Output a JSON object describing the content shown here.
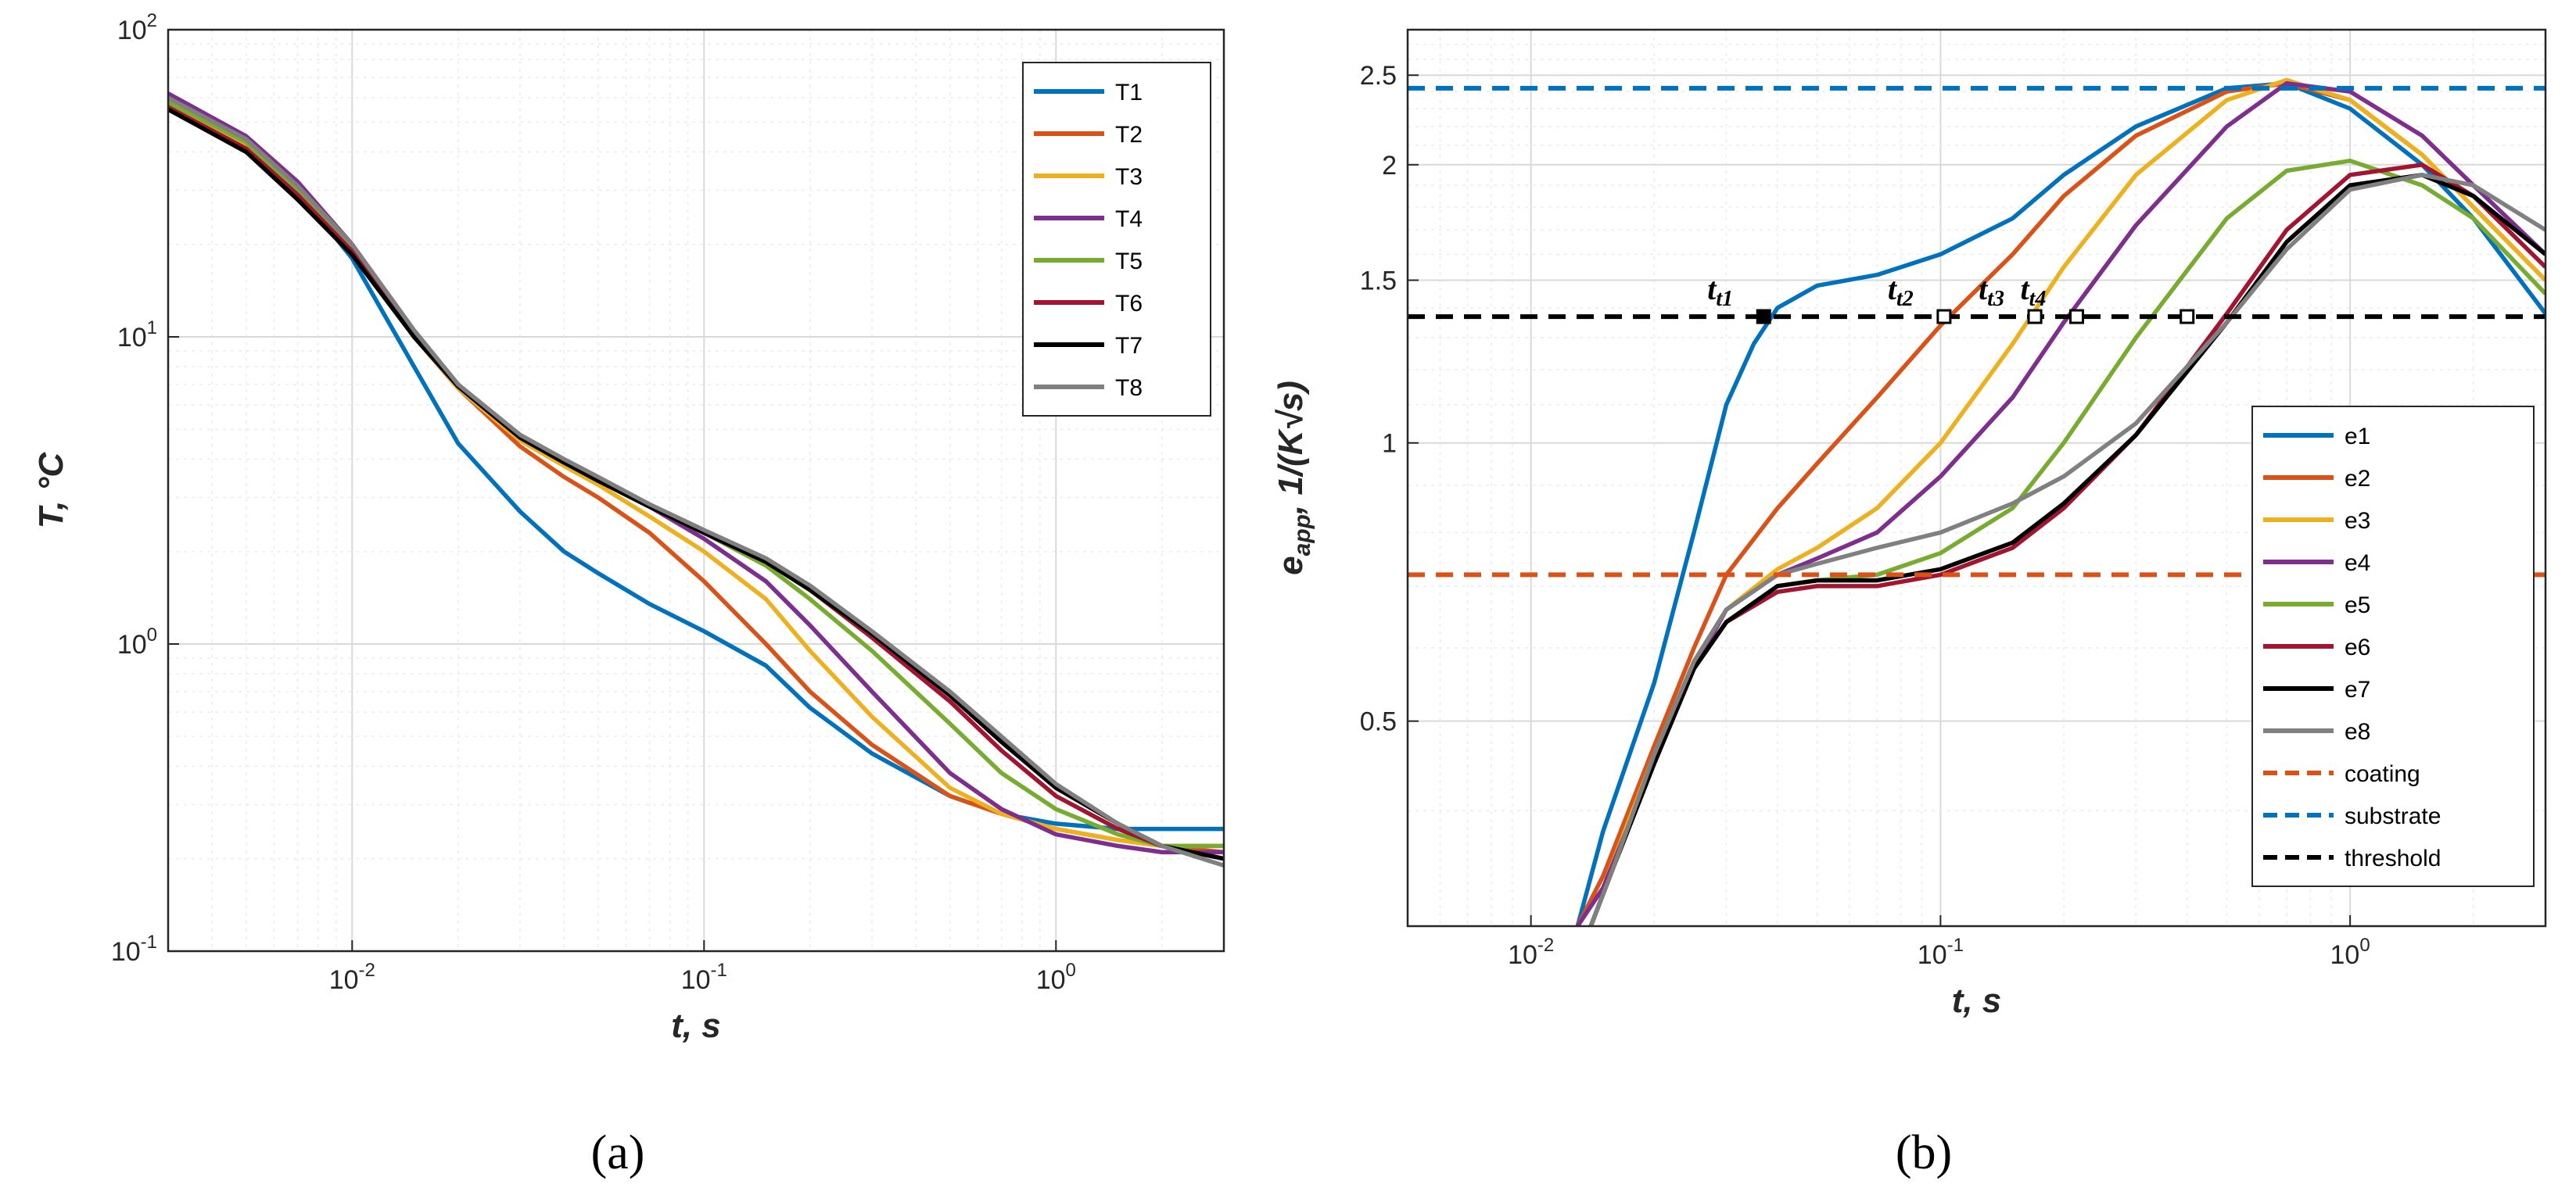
{
  "chart_data": [
    {
      "panel_label": "a",
      "type": "line",
      "xscale": "log",
      "yscale": "log",
      "xlim": [
        0.003,
        3
      ],
      "ylim": [
        0.1,
        100
      ],
      "xlabel": "t, s",
      "ylabel": "T, °C",
      "xticks": [
        {
          "value": 0.01,
          "base": "10",
          "exp": "-2"
        },
        {
          "value": 0.1,
          "base": "10",
          "exp": "-1"
        },
        {
          "value": 1,
          "base": "10",
          "exp": "0"
        }
      ],
      "yticks": [
        {
          "value": 0.1,
          "base": "10",
          "exp": "-1"
        },
        {
          "value": 1,
          "base": "10",
          "exp": "0"
        },
        {
          "value": 10,
          "base": "10",
          "exp": "1"
        },
        {
          "value": 100,
          "base": "10",
          "exp": "2"
        }
      ],
      "grid": true,
      "legend_position": "top-right",
      "series": [
        {
          "name": "T1",
          "color": "#0072BD",
          "x": [
            0.003,
            0.005,
            0.007,
            0.01,
            0.015,
            0.02,
            0.03,
            0.04,
            0.05,
            0.07,
            0.1,
            0.15,
            0.2,
            0.3,
            0.5,
            0.7,
            1,
            1.5,
            2,
            3
          ],
          "y": [
            58,
            42,
            30,
            18,
            8,
            4.5,
            2.7,
            2.0,
            1.7,
            1.35,
            1.1,
            0.85,
            0.62,
            0.44,
            0.32,
            0.28,
            0.26,
            0.25,
            0.25,
            0.25
          ]
        },
        {
          "name": "T2",
          "color": "#D95319",
          "x": [
            0.003,
            0.005,
            0.007,
            0.01,
            0.015,
            0.02,
            0.03,
            0.04,
            0.05,
            0.07,
            0.1,
            0.15,
            0.2,
            0.3,
            0.5,
            0.7,
            1,
            1.5,
            2,
            3
          ],
          "y": [
            57,
            42,
            29,
            19,
            10,
            6.8,
            4.4,
            3.5,
            3.0,
            2.3,
            1.6,
            1.0,
            0.7,
            0.47,
            0.32,
            0.28,
            0.25,
            0.23,
            0.22,
            0.21
          ]
        },
        {
          "name": "T3",
          "color": "#EDB120",
          "x": [
            0.003,
            0.005,
            0.007,
            0.01,
            0.015,
            0.02,
            0.03,
            0.04,
            0.05,
            0.07,
            0.1,
            0.15,
            0.2,
            0.3,
            0.5,
            0.7,
            1,
            1.5,
            2,
            3
          ],
          "y": [
            57,
            42,
            29,
            19,
            10,
            6.8,
            4.6,
            3.8,
            3.3,
            2.6,
            2.0,
            1.4,
            0.95,
            0.58,
            0.34,
            0.28,
            0.25,
            0.23,
            0.22,
            0.22
          ]
        },
        {
          "name": "T4",
          "color": "#7E2F8E",
          "x": [
            0.003,
            0.005,
            0.007,
            0.01,
            0.015,
            0.02,
            0.03,
            0.04,
            0.05,
            0.07,
            0.1,
            0.15,
            0.2,
            0.3,
            0.5,
            0.7,
            1,
            1.5,
            2,
            3
          ],
          "y": [
            62,
            45,
            32,
            20,
            10.5,
            7.0,
            4.7,
            3.9,
            3.4,
            2.8,
            2.2,
            1.6,
            1.15,
            0.7,
            0.38,
            0.29,
            0.24,
            0.22,
            0.21,
            0.21
          ]
        },
        {
          "name": "T5",
          "color": "#77AC30",
          "x": [
            0.003,
            0.005,
            0.007,
            0.01,
            0.015,
            0.02,
            0.03,
            0.04,
            0.05,
            0.07,
            0.1,
            0.15,
            0.2,
            0.3,
            0.5,
            0.7,
            1,
            1.5,
            2,
            3
          ],
          "y": [
            58,
            43,
            30,
            19,
            10,
            6.9,
            4.7,
            3.9,
            3.4,
            2.8,
            2.3,
            1.8,
            1.4,
            0.95,
            0.55,
            0.38,
            0.29,
            0.24,
            0.22,
            0.22
          ]
        },
        {
          "name": "T6",
          "color": "#A2142F",
          "x": [
            0.003,
            0.005,
            0.007,
            0.01,
            0.015,
            0.02,
            0.03,
            0.04,
            0.05,
            0.07,
            0.1,
            0.15,
            0.2,
            0.3,
            0.5,
            0.7,
            1,
            1.5,
            2,
            3
          ],
          "y": [
            56,
            41,
            29,
            19,
            10,
            6.9,
            4.7,
            3.9,
            3.4,
            2.8,
            2.3,
            1.85,
            1.5,
            1.05,
            0.65,
            0.45,
            0.32,
            0.25,
            0.22,
            0.2
          ]
        },
        {
          "name": "T7",
          "color": "#000000",
          "x": [
            0.003,
            0.005,
            0.007,
            0.01,
            0.015,
            0.02,
            0.03,
            0.04,
            0.05,
            0.07,
            0.1,
            0.15,
            0.2,
            0.3,
            0.5,
            0.7,
            1,
            1.5,
            2,
            3
          ],
          "y": [
            55,
            40,
            28,
            18.5,
            10,
            6.9,
            4.7,
            3.9,
            3.4,
            2.8,
            2.3,
            1.85,
            1.5,
            1.08,
            0.68,
            0.48,
            0.34,
            0.26,
            0.22,
            0.2
          ]
        },
        {
          "name": "T8",
          "color": "#808080",
          "x": [
            0.003,
            0.005,
            0.007,
            0.01,
            0.015,
            0.02,
            0.03,
            0.04,
            0.05,
            0.07,
            0.1,
            0.15,
            0.2,
            0.3,
            0.5,
            0.7,
            1,
            1.5,
            2,
            3
          ],
          "y": [
            60,
            44,
            31,
            20,
            10.5,
            7.0,
            4.8,
            4.0,
            3.5,
            2.85,
            2.35,
            1.9,
            1.55,
            1.1,
            0.7,
            0.5,
            0.35,
            0.26,
            0.22,
            0.19
          ]
        }
      ]
    },
    {
      "panel_label": "b",
      "type": "line",
      "xscale": "log",
      "yscale": "log",
      "xlim": [
        0.005,
        3
      ],
      "ylim": [
        0.3,
        2.8
      ],
      "xlabel": "t, s",
      "ylabel": "e_app, 1/(K√s)",
      "ylabel_main": "e",
      "ylabel_sub": "app",
      "ylabel_rest": ", 1/(K√s)",
      "xticks": [
        {
          "value": 0.01,
          "base": "10",
          "exp": "-2"
        },
        {
          "value": 0.1,
          "base": "10",
          "exp": "-1"
        },
        {
          "value": 1,
          "base": "10",
          "exp": "0"
        }
      ],
      "yticks": [
        {
          "value": 0.5,
          "label": "0.5"
        },
        {
          "value": 1,
          "label": "1"
        },
        {
          "value": 1.5,
          "label": "1.5"
        },
        {
          "value": 2,
          "label": "2"
        },
        {
          "value": 2.5,
          "label": "2.5"
        }
      ],
      "grid": true,
      "legend_position": "bottom-right",
      "series": [
        {
          "name": "e1",
          "color": "#0072BD",
          "x": [
            0.013,
            0.015,
            0.02,
            0.025,
            0.03,
            0.035,
            0.04,
            0.05,
            0.07,
            0.1,
            0.15,
            0.2,
            0.3,
            0.5,
            0.7,
            1,
            1.5,
            2,
            3
          ],
          "y": [
            0.3,
            0.38,
            0.55,
            0.8,
            1.1,
            1.28,
            1.4,
            1.48,
            1.52,
            1.6,
            1.75,
            1.95,
            2.2,
            2.42,
            2.45,
            2.3,
            2.0,
            1.75,
            1.38
          ]
        },
        {
          "name": "e2",
          "color": "#D95319",
          "x": [
            0.013,
            0.015,
            0.02,
            0.025,
            0.03,
            0.04,
            0.05,
            0.07,
            0.1,
            0.15,
            0.2,
            0.3,
            0.5,
            0.7,
            1,
            1.5,
            2,
            3
          ],
          "y": [
            0.3,
            0.34,
            0.47,
            0.6,
            0.72,
            0.85,
            0.95,
            1.12,
            1.34,
            1.6,
            1.85,
            2.15,
            2.4,
            2.45,
            2.35,
            2.05,
            1.8,
            1.5
          ]
        },
        {
          "name": "e3",
          "color": "#EDB120",
          "x": [
            0.013,
            0.015,
            0.02,
            0.025,
            0.03,
            0.04,
            0.05,
            0.07,
            0.1,
            0.15,
            0.2,
            0.3,
            0.5,
            0.7,
            1,
            1.5,
            2,
            3
          ],
          "y": [
            0.3,
            0.33,
            0.46,
            0.58,
            0.66,
            0.73,
            0.77,
            0.85,
            1.0,
            1.28,
            1.55,
            1.95,
            2.35,
            2.47,
            2.35,
            2.05,
            1.8,
            1.5
          ]
        },
        {
          "name": "e4",
          "color": "#7E2F8E",
          "x": [
            0.013,
            0.015,
            0.02,
            0.025,
            0.03,
            0.04,
            0.05,
            0.07,
            0.1,
            0.15,
            0.2,
            0.3,
            0.5,
            0.7,
            1,
            1.5,
            2,
            3
          ],
          "y": [
            0.3,
            0.33,
            0.45,
            0.57,
            0.66,
            0.72,
            0.75,
            0.8,
            0.92,
            1.12,
            1.35,
            1.72,
            2.2,
            2.45,
            2.4,
            2.15,
            1.9,
            1.6
          ]
        },
        {
          "name": "e5",
          "color": "#77AC30",
          "x": [
            0.014,
            0.016,
            0.02,
            0.025,
            0.03,
            0.04,
            0.05,
            0.07,
            0.1,
            0.15,
            0.2,
            0.3,
            0.5,
            0.7,
            1,
            1.5,
            2,
            3
          ],
          "y": [
            0.3,
            0.35,
            0.45,
            0.57,
            0.64,
            0.7,
            0.71,
            0.72,
            0.76,
            0.85,
            1.0,
            1.3,
            1.75,
            1.97,
            2.02,
            1.9,
            1.75,
            1.45
          ]
        },
        {
          "name": "e6",
          "color": "#A2142F",
          "x": [
            0.014,
            0.016,
            0.02,
            0.025,
            0.03,
            0.04,
            0.05,
            0.07,
            0.1,
            0.15,
            0.2,
            0.3,
            0.5,
            0.7,
            1,
            1.5,
            2,
            3
          ],
          "y": [
            0.3,
            0.35,
            0.45,
            0.57,
            0.64,
            0.69,
            0.7,
            0.7,
            0.72,
            0.77,
            0.85,
            1.02,
            1.38,
            1.7,
            1.95,
            2.0,
            1.85,
            1.55
          ]
        },
        {
          "name": "e7",
          "color": "#000000",
          "x": [
            0.014,
            0.016,
            0.02,
            0.025,
            0.03,
            0.04,
            0.05,
            0.07,
            0.1,
            0.15,
            0.2,
            0.3,
            0.5,
            0.7,
            1,
            1.5,
            2,
            3
          ],
          "y": [
            0.3,
            0.35,
            0.45,
            0.57,
            0.64,
            0.7,
            0.71,
            0.71,
            0.73,
            0.78,
            0.86,
            1.02,
            1.35,
            1.65,
            1.9,
            1.95,
            1.85,
            1.6
          ]
        },
        {
          "name": "e8",
          "color": "#808080",
          "x": [
            0.014,
            0.016,
            0.02,
            0.025,
            0.03,
            0.04,
            0.05,
            0.07,
            0.1,
            0.15,
            0.2,
            0.3,
            0.5,
            0.7,
            1,
            1.5,
            2,
            3
          ],
          "y": [
            0.3,
            0.35,
            0.46,
            0.58,
            0.66,
            0.72,
            0.74,
            0.77,
            0.8,
            0.86,
            0.92,
            1.05,
            1.35,
            1.62,
            1.88,
            1.95,
            1.9,
            1.7
          ]
        },
        {
          "name": "coating",
          "color": "#D95319",
          "dashed": true,
          "x": [
            0.005,
            3
          ],
          "y": [
            0.72,
            0.72
          ]
        },
        {
          "name": "substrate",
          "color": "#0072BD",
          "dashed": true,
          "x": [
            0.005,
            3
          ],
          "y": [
            2.42,
            2.42
          ]
        },
        {
          "name": "threshold",
          "color": "#000000",
          "dashed": true,
          "x": [
            0.005,
            3
          ],
          "y": [
            1.37,
            1.37
          ]
        }
      ],
      "markers": [
        {
          "label_main": "t",
          "label_sub": "t1",
          "x": 0.037,
          "y": 1.37,
          "filled": true
        },
        {
          "label_main": "t",
          "label_sub": "t2",
          "x": 0.102,
          "y": 1.37,
          "filled": false
        },
        {
          "label_main": "t",
          "label_sub": "t3",
          "x": 0.17,
          "y": 1.37,
          "filled": false
        },
        {
          "label_main": "t",
          "label_sub": "t4",
          "x": 0.215,
          "y": 1.37,
          "filled": false
        },
        {
          "label_main": "",
          "label_sub": "",
          "x": 0.4,
          "y": 1.37,
          "filled": false
        }
      ]
    }
  ],
  "captions": {
    "a": "(a)",
    "b": "(b)"
  }
}
